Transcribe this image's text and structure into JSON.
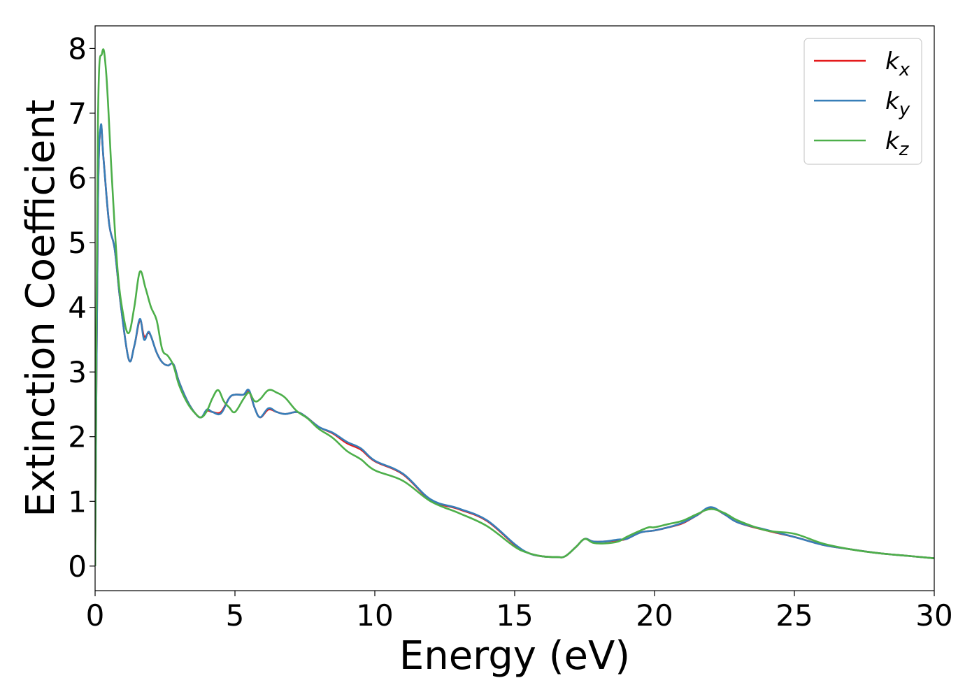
{
  "chart_data": {
    "type": "line",
    "title": "",
    "xlabel": "Energy (eV)",
    "ylabel": "Extinction Coefficient",
    "xlim": [
      0,
      30
    ],
    "ylim": [
      -0.38,
      8.35
    ],
    "xticks": [
      0,
      5,
      10,
      15,
      20,
      25,
      30
    ],
    "yticks": [
      0,
      1,
      2,
      3,
      4,
      5,
      6,
      7,
      8
    ],
    "grid": false,
    "legend": {
      "position": "top-right"
    },
    "series": [
      {
        "name": "k",
        "subscript": "x",
        "color": "#e41a1c",
        "x": [
          0,
          0.1,
          0.2,
          0.3,
          0.5,
          0.7,
          0.9,
          1.2,
          1.4,
          1.6,
          1.75,
          1.9,
          2.0,
          2.2,
          2.4,
          2.6,
          2.8,
          3.0,
          3.3,
          3.6,
          3.8,
          4.0,
          4.2,
          4.5,
          4.8,
          5.0,
          5.3,
          5.5,
          5.7,
          5.9,
          6.2,
          6.5,
          6.8,
          7.2,
          7.5,
          8.0,
          8.5,
          9.0,
          9.5,
          10.0,
          11.0,
          12.0,
          13.0,
          14.0,
          15.0,
          15.5,
          16.0,
          16.5,
          16.8,
          17.2,
          17.5,
          17.8,
          18.2,
          18.7,
          19.0,
          19.5,
          20.0,
          20.5,
          21.0,
          21.5,
          22.0,
          22.5,
          23.0,
          24.0,
          25.0,
          26.0,
          27.0,
          28.0,
          29.0,
          30.0
        ],
        "values": [
          0,
          5.5,
          6.78,
          6.3,
          5.3,
          4.9,
          4.1,
          3.2,
          3.4,
          3.8,
          3.55,
          3.6,
          3.55,
          3.3,
          3.15,
          3.1,
          3.12,
          2.85,
          2.55,
          2.35,
          2.3,
          2.4,
          2.38,
          2.38,
          2.6,
          2.65,
          2.65,
          2.7,
          2.45,
          2.3,
          2.42,
          2.38,
          2.35,
          2.38,
          2.32,
          2.15,
          2.05,
          1.9,
          1.8,
          1.62,
          1.42,
          1.02,
          0.88,
          0.7,
          0.33,
          0.2,
          0.15,
          0.14,
          0.15,
          0.3,
          0.42,
          0.38,
          0.38,
          0.4,
          0.42,
          0.52,
          0.55,
          0.6,
          0.66,
          0.78,
          0.9,
          0.8,
          0.67,
          0.55,
          0.45,
          0.33,
          0.26,
          0.2,
          0.16,
          0.12
        ]
      },
      {
        "name": "k",
        "subscript": "y",
        "color": "#377eb8",
        "x": [
          0,
          0.1,
          0.2,
          0.3,
          0.5,
          0.7,
          0.9,
          1.2,
          1.4,
          1.6,
          1.75,
          1.9,
          2.0,
          2.2,
          2.4,
          2.6,
          2.8,
          3.0,
          3.3,
          3.6,
          3.8,
          4.0,
          4.2,
          4.5,
          4.8,
          5.0,
          5.3,
          5.5,
          5.7,
          5.9,
          6.2,
          6.5,
          6.8,
          7.2,
          7.5,
          8.0,
          8.5,
          9.0,
          9.5,
          10.0,
          11.0,
          12.0,
          13.0,
          14.0,
          15.0,
          15.5,
          16.0,
          16.5,
          16.8,
          17.2,
          17.5,
          17.8,
          18.2,
          18.7,
          19.0,
          19.5,
          20.0,
          20.5,
          21.0,
          21.5,
          22.0,
          22.5,
          23.0,
          24.0,
          25.0,
          26.0,
          27.0,
          28.0,
          29.0,
          30.0
        ],
        "values": [
          0,
          5.5,
          6.8,
          6.3,
          5.3,
          4.9,
          4.1,
          3.2,
          3.4,
          3.82,
          3.5,
          3.62,
          3.55,
          3.3,
          3.15,
          3.1,
          3.12,
          2.85,
          2.55,
          2.35,
          2.3,
          2.42,
          2.38,
          2.36,
          2.6,
          2.65,
          2.65,
          2.72,
          2.45,
          2.3,
          2.44,
          2.38,
          2.35,
          2.38,
          2.32,
          2.15,
          2.06,
          1.92,
          1.82,
          1.63,
          1.43,
          1.03,
          0.89,
          0.71,
          0.34,
          0.2,
          0.15,
          0.14,
          0.15,
          0.3,
          0.42,
          0.38,
          0.38,
          0.41,
          0.42,
          0.52,
          0.55,
          0.6,
          0.67,
          0.78,
          0.91,
          0.8,
          0.67,
          0.56,
          0.45,
          0.33,
          0.26,
          0.2,
          0.16,
          0.12
        ]
      },
      {
        "name": "k",
        "subscript": "z",
        "color": "#4daf4a",
        "x": [
          0,
          0.1,
          0.25,
          0.4,
          0.6,
          0.8,
          1.0,
          1.2,
          1.4,
          1.6,
          1.8,
          2.0,
          2.2,
          2.4,
          2.6,
          2.8,
          3.0,
          3.3,
          3.6,
          3.8,
          4.0,
          4.2,
          4.4,
          4.6,
          4.8,
          5.0,
          5.3,
          5.5,
          5.7,
          5.9,
          6.2,
          6.5,
          6.8,
          7.2,
          7.6,
          8.0,
          8.5,
          9.0,
          9.5,
          10.0,
          11.0,
          12.0,
          13.0,
          14.0,
          15.0,
          15.5,
          16.0,
          16.5,
          16.8,
          17.2,
          17.5,
          17.8,
          18.2,
          18.7,
          19.0,
          19.5,
          19.8,
          20.0,
          20.5,
          21.0,
          21.5,
          22.0,
          22.5,
          23.0,
          24.0,
          25.0,
          26.0,
          27.0,
          28.0,
          29.0,
          30.0
        ],
        "values": [
          0,
          6.8,
          7.93,
          7.6,
          6.0,
          4.6,
          3.9,
          3.6,
          4.0,
          4.55,
          4.3,
          4.0,
          3.8,
          3.35,
          3.25,
          3.1,
          2.8,
          2.52,
          2.35,
          2.3,
          2.4,
          2.6,
          2.72,
          2.55,
          2.45,
          2.38,
          2.58,
          2.68,
          2.55,
          2.58,
          2.72,
          2.68,
          2.6,
          2.4,
          2.28,
          2.12,
          1.98,
          1.78,
          1.65,
          1.48,
          1.32,
          1.0,
          0.82,
          0.62,
          0.3,
          0.2,
          0.15,
          0.14,
          0.15,
          0.3,
          0.42,
          0.36,
          0.35,
          0.38,
          0.45,
          0.55,
          0.6,
          0.6,
          0.65,
          0.7,
          0.8,
          0.88,
          0.82,
          0.7,
          0.55,
          0.5,
          0.35,
          0.26,
          0.2,
          0.16,
          0.12
        ]
      }
    ]
  }
}
